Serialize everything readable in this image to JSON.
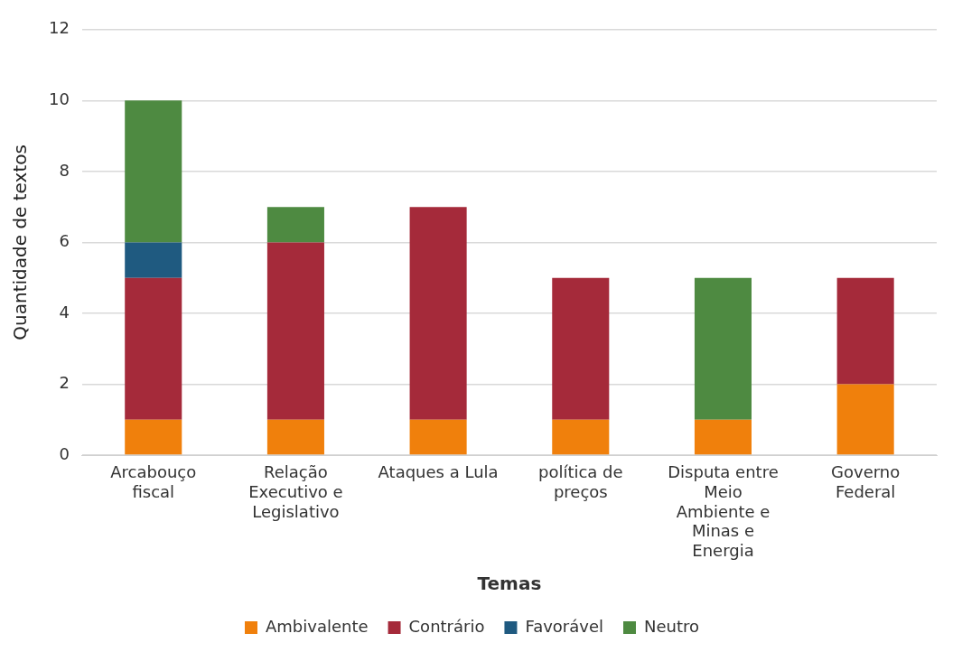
{
  "chart_data": {
    "type": "bar",
    "stacked": true,
    "xlabel": "Temas",
    "ylabel": "Quantidade de textos",
    "categories": [
      "Arcabouço fiscal",
      "Relação Executivo e Legislativo",
      "Ataques a Lula",
      "política de preços",
      "Disputa entre Meio Ambiente e Minas e Energia",
      "Governo Federal"
    ],
    "series": [
      {
        "name": "Ambivalente",
        "color": "#f0800c",
        "values": [
          1,
          1,
          1,
          1,
          1,
          2
        ]
      },
      {
        "name": "Contrário",
        "color": "#a52a3a",
        "values": [
          4,
          5,
          6,
          4,
          0,
          3
        ]
      },
      {
        "name": "Favorável",
        "color": "#1f5a80",
        "values": [
          1,
          0,
          0,
          0,
          0,
          0
        ]
      },
      {
        "name": "Neutro",
        "color": "#4e8a41",
        "values": [
          4,
          1,
          0,
          0,
          4,
          0
        ]
      }
    ],
    "ylim": [
      0,
      12
    ],
    "yticks": [
      0,
      2,
      4,
      6,
      8,
      10,
      12
    ],
    "grid": "y",
    "legend": "bottom"
  }
}
